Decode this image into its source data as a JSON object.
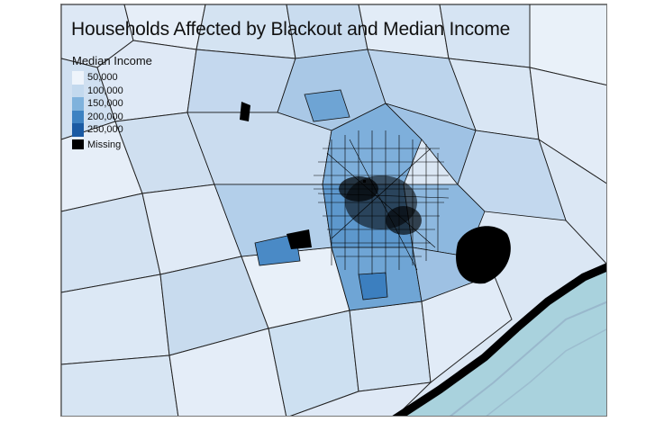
{
  "map": {
    "title": "Households Affected by Blackout and Median Income"
  },
  "legend": {
    "title": "Median Income",
    "ramp": [
      {
        "label": "50,000",
        "color": "#eef4fb"
      },
      {
        "label": "100,000",
        "color": "#c3d9ee"
      },
      {
        "label": "150,000",
        "color": "#7fb2dc"
      },
      {
        "label": "200,000",
        "color": "#3d82c2"
      },
      {
        "label": "250,000",
        "color": "#1a5aa3"
      }
    ],
    "missing": {
      "label": "Missing",
      "color": "#000000"
    }
  },
  "colors": {
    "ocean": "#a9d2dd",
    "coastline": "#000000",
    "borders": "#222222",
    "blackout_area": "#000000",
    "low_income": "#e8f0f9",
    "mid_income": "#c6dbef",
    "high_income": "#6aa3d3"
  }
}
